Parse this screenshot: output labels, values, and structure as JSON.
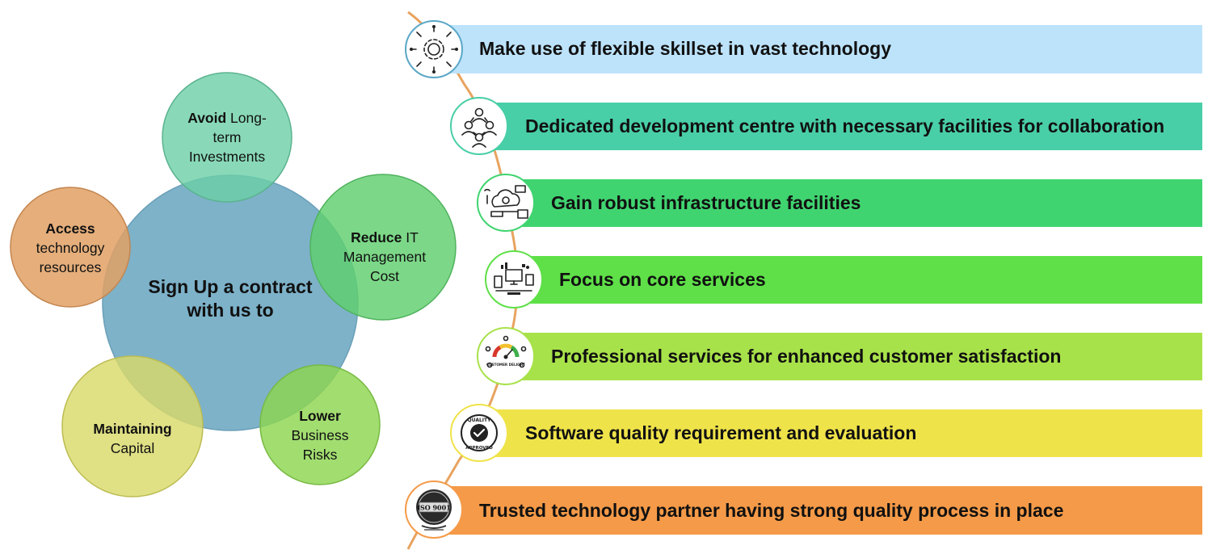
{
  "center": {
    "line1": "Sign Up a contract",
    "line2": "with us to",
    "color": "#6ba7c2"
  },
  "petals": [
    {
      "bold": "Avoid",
      "rest1": " Long-",
      "line2": "term",
      "line3": "Investments",
      "color": "#6ccfa6"
    },
    {
      "bold": "Reduce",
      "rest1": " IT",
      "line2": "Management",
      "line3": "Cost",
      "color": "#5fcf6e"
    },
    {
      "bold": "Lower",
      "rest1": "",
      "line2": "Business",
      "line3": "Risks",
      "color": "#8dd650"
    },
    {
      "bold": "Maintaining",
      "rest1": "",
      "line2": "Capital",
      "line3": "",
      "color": "#d9d96a"
    },
    {
      "bold": "Access",
      "rest1": "",
      "line2": "technology",
      "line3": "resources",
      "color": "#e0a064"
    }
  ],
  "items": [
    {
      "text": "Make use of flexible skillset in vast technology",
      "color": "#bde3fb",
      "icon": "gear-network-icon"
    },
    {
      "text": "Dedicated development centre with necessary facilities for collaboration",
      "color": "#49cfa7",
      "icon": "team-collaboration-icon"
    },
    {
      "text": "Gain robust infrastructure facilities",
      "color": "#40d470",
      "icon": "cloud-infrastructure-icon"
    },
    {
      "text": "Focus on core services",
      "color": "#5fe048",
      "icon": "devices-services-icon"
    },
    {
      "text": "Professional services for enhanced customer satisfaction",
      "color": "#a8e24a",
      "icon": "customer-delight-gauge-icon"
    },
    {
      "text": "Software quality requirement and evaluation",
      "color": "#efe34a",
      "icon": "quality-approved-badge-icon"
    },
    {
      "text": "Trusted technology partner having strong quality process in place",
      "color": "#f59a48",
      "icon": "iso-9001-badge-icon"
    }
  ],
  "badges": {
    "customer_delight": "CUSTOMER DELIGHT",
    "quality": "QUALITY",
    "approved": "APPROVED",
    "iso": "ISO 9001"
  },
  "timeline_color": "#e8a35f"
}
